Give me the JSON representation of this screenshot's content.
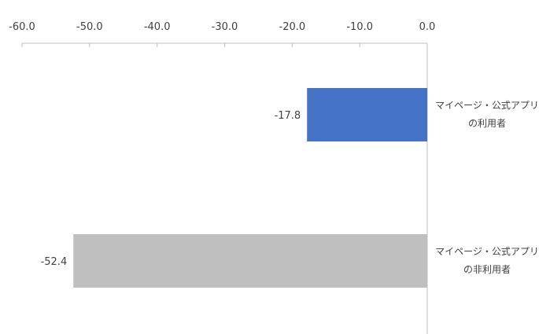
{
  "chart_data": {
    "type": "bar",
    "orientation": "horizontal",
    "xlim": [
      -60,
      0
    ],
    "ticks": [
      -60,
      -50,
      -40,
      -30,
      -20,
      -10,
      0
    ],
    "tick_labels": [
      "-60.0",
      "-50.0",
      "-40.0",
      "-30.0",
      "-20.0",
      "-10.0",
      "0.0"
    ],
    "axis_position": "top",
    "grid": false,
    "categories": [
      {
        "line1": "マイページ・公式アプリ",
        "line2": "の利用者"
      },
      {
        "line1": "マイページ・公式アプリ",
        "line2": "の非利用者"
      }
    ],
    "values": [
      -17.8,
      -52.4
    ],
    "value_labels": [
      "-17.8",
      "-52.4"
    ],
    "colors": [
      "#4472c4",
      "#bfbfbf"
    ]
  }
}
